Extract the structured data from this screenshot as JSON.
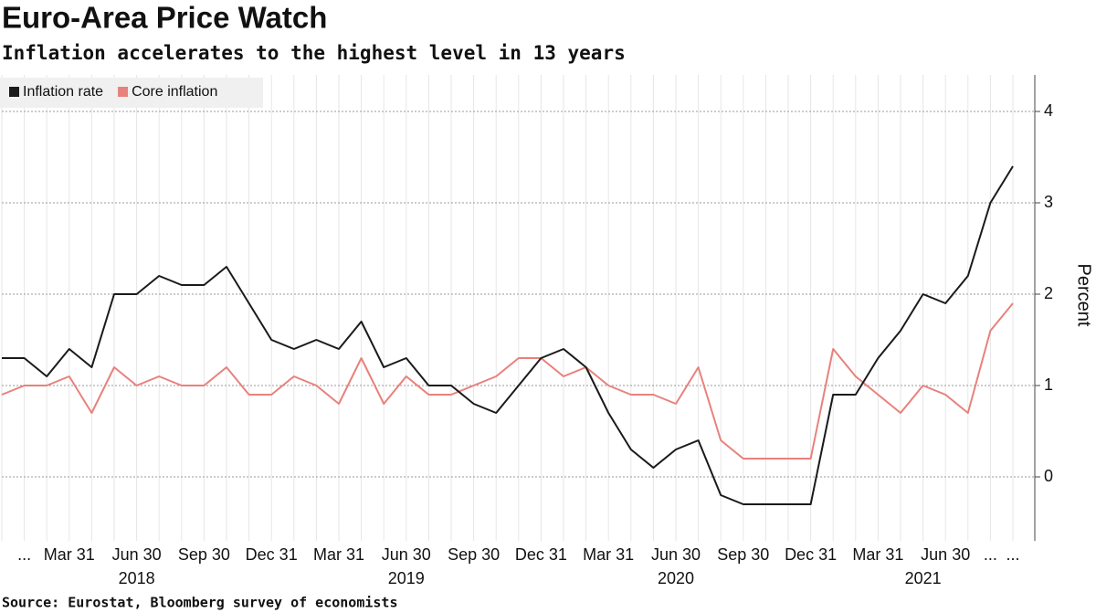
{
  "chart_data": {
    "type": "line",
    "title": "Euro-Area Price Watch",
    "subtitle": "Inflation accelerates to the highest level in 13 years",
    "source": "Source: Eurostat, Bloomberg survey of economists",
    "y_axis_label": "Percent",
    "categories": [
      null,
      "...",
      null,
      "Mar 31",
      null,
      null,
      "Jun 30",
      null,
      null,
      "Sep 30",
      null,
      null,
      "Dec 31",
      null,
      null,
      "Mar 31",
      null,
      null,
      "Jun 30",
      null,
      null,
      "Sep 30",
      null,
      null,
      "Dec 31",
      null,
      null,
      "Mar 31",
      null,
      null,
      "Jun 30",
      null,
      null,
      "Sep 30",
      null,
      null,
      "Dec 31",
      null,
      null,
      "Mar 31",
      null,
      null,
      "Jun 30",
      null,
      "...",
      "..."
    ],
    "years": [
      "2018",
      "2019",
      "2020",
      "2021"
    ],
    "series": [
      {
        "name": "Inflation rate",
        "color": "#1a1a1a",
        "values": [
          1.3,
          1.3,
          1.1,
          1.4,
          1.2,
          2.0,
          2.0,
          2.2,
          2.1,
          2.1,
          2.3,
          1.9,
          1.5,
          1.4,
          1.5,
          1.4,
          1.7,
          1.2,
          1.3,
          1.0,
          1.0,
          0.8,
          0.7,
          1.0,
          1.3,
          1.4,
          1.2,
          0.7,
          0.3,
          0.1,
          0.3,
          0.4,
          -0.2,
          -0.3,
          -0.3,
          -0.3,
          -0.3,
          0.9,
          0.9,
          1.3,
          1.6,
          2.0,
          1.9,
          2.2,
          3.0,
          3.4
        ]
      },
      {
        "name": "Core inflation",
        "color": "#e8817c",
        "values": [
          0.9,
          1.0,
          1.0,
          1.1,
          0.7,
          1.2,
          1.0,
          1.1,
          1.0,
          1.0,
          1.2,
          0.9,
          0.9,
          1.1,
          1.0,
          0.8,
          1.3,
          0.8,
          1.1,
          0.9,
          0.9,
          1.0,
          1.1,
          1.3,
          1.3,
          1.1,
          1.2,
          1.0,
          0.9,
          0.9,
          0.8,
          1.2,
          0.4,
          0.2,
          0.2,
          0.2,
          0.2,
          1.4,
          1.1,
          0.9,
          0.7,
          1.0,
          0.9,
          0.7,
          1.6,
          1.9
        ]
      }
    ],
    "ylim": [
      -0.7,
      4.4
    ],
    "yticks": [
      0,
      1,
      2,
      3,
      4
    ],
    "grid": true,
    "legend": "top-left"
  }
}
